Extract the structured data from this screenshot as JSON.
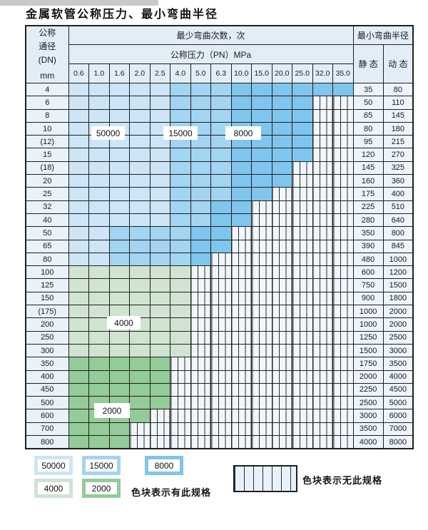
{
  "title": "金属软管公称压力、最小弯曲半径",
  "table": {
    "header": {
      "dn_lines": [
        "公称",
        "通径",
        "(DN)",
        "mm"
      ],
      "bend_cycles": "最少弯曲次数，次",
      "pressure": "公称压力（PN）MPa",
      "min_radius": "最小弯曲半径",
      "static_label": "静 态",
      "dynamic_label": "动 态",
      "pn_columns": [
        "0.6",
        "1.0",
        "1.6",
        "2.0",
        "2.5",
        "4.0",
        "5.0",
        "6.3",
        "10.0",
        "15.0",
        "20.0",
        "25.0",
        "32.0",
        "35.0"
      ]
    },
    "cell_key": {
      "a": "50000",
      "b": "15000",
      "c": "8000",
      "d": "4000",
      "e": "2000",
      "-": "无此规格"
    },
    "rows": [
      {
        "dn": "4",
        "cells": "aaaaabbbcccccc",
        "static": "35",
        "dynamic": "80"
      },
      {
        "dn": "6",
        "cells": "aaaaabbbcccc--",
        "static": "50",
        "dynamic": "110"
      },
      {
        "dn": "8",
        "cells": "aaaaabbbcccc--",
        "static": "65",
        "dynamic": "145"
      },
      {
        "dn": "10",
        "cells": "aaaaabbbcccc--",
        "static": "80",
        "dynamic": "180"
      },
      {
        "dn": "(12)",
        "cells": "aaaaabbbcccc--",
        "static": "95",
        "dynamic": "215"
      },
      {
        "dn": "15",
        "cells": "aaaaabbbcccc--",
        "static": "120",
        "dynamic": "270"
      },
      {
        "dn": "(18)",
        "cells": "aaaaabbbccc---",
        "static": "145",
        "dynamic": "325"
      },
      {
        "dn": "20",
        "cells": "aaaaabbbccc---",
        "static": "160",
        "dynamic": "360"
      },
      {
        "dn": "25",
        "cells": "aaaaabbbcc----",
        "static": "175",
        "dynamic": "400"
      },
      {
        "dn": "32",
        "cells": "aaaaabbcc-----",
        "static": "225",
        "dynamic": "510"
      },
      {
        "dn": "40",
        "cells": "aaaaabbcc-----",
        "static": "280",
        "dynamic": "640"
      },
      {
        "dn": "50",
        "cells": "aabbbbcc------",
        "static": "350",
        "dynamic": "800"
      },
      {
        "dn": "65",
        "cells": "aabbbbcc------",
        "static": "390",
        "dynamic": "845"
      },
      {
        "dn": "80",
        "cells": "aabbbbc-------",
        "static": "480",
        "dynamic": "1000"
      },
      {
        "dn": "100",
        "cells": "dddddd--------",
        "static": "600",
        "dynamic": "1200"
      },
      {
        "dn": "125",
        "cells": "dddddd--------",
        "static": "750",
        "dynamic": "1500"
      },
      {
        "dn": "150",
        "cells": "dddddd--------",
        "static": "900",
        "dynamic": "1800"
      },
      {
        "dn": "(175)",
        "cells": "dddddd--------",
        "static": "1000",
        "dynamic": "2000"
      },
      {
        "dn": "200",
        "cells": "dddddd--------",
        "static": "1000",
        "dynamic": "2000"
      },
      {
        "dn": "250",
        "cells": "dddddd--------",
        "static": "1250",
        "dynamic": "2500"
      },
      {
        "dn": "300",
        "cells": "dddddd--------",
        "static": "1500",
        "dynamic": "3000"
      },
      {
        "dn": "350",
        "cells": "eeeee---------",
        "static": "1750",
        "dynamic": "3500"
      },
      {
        "dn": "400",
        "cells": "eeeee---------",
        "static": "2000",
        "dynamic": "4000"
      },
      {
        "dn": "450",
        "cells": "eeeee---------",
        "static": "2250",
        "dynamic": "4500"
      },
      {
        "dn": "500",
        "cells": "eeeee---------",
        "static": "2500",
        "dynamic": "5000"
      },
      {
        "dn": "600",
        "cells": "eeee----------",
        "static": "3000",
        "dynamic": "6000"
      },
      {
        "dn": "700",
        "cells": "eee-----------",
        "static": "3500",
        "dynamic": "7000"
      },
      {
        "dn": "800",
        "cells": "eee-----------",
        "static": "4000",
        "dynamic": "8000"
      }
    ]
  },
  "region_labels": {
    "r50000": "50000",
    "r15000": "15000",
    "r8000": "8000",
    "r4000": "4000",
    "r2000": "2000"
  },
  "legend": {
    "items": [
      {
        "label": "50000",
        "code": "a"
      },
      {
        "label": "15000",
        "code": "b"
      },
      {
        "label": "8000",
        "code": "c"
      },
      {
        "label": "4000",
        "code": "d"
      },
      {
        "label": "2000",
        "code": "e"
      }
    ],
    "has_spec_text": "色块表示有此规格",
    "no_spec_text": "色块表示无此规格"
  },
  "colors": {
    "c50000": "#cde5f7",
    "c15000": "#a3d4f2",
    "c8000": "#7fc5ed",
    "c4000": "#d0e4d1",
    "c2000": "#93cb99",
    "header_bg": "#e2edf8"
  }
}
